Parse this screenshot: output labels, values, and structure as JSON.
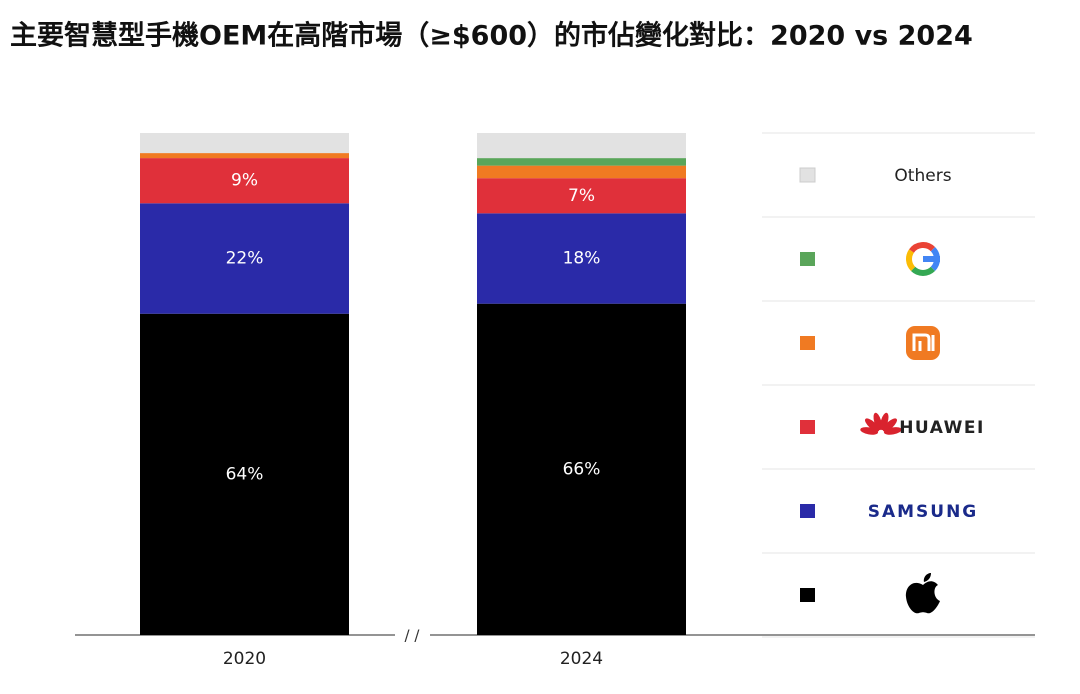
{
  "chart_data": {
    "type": "stacked_bar",
    "title": "主要智慧型手機OEM在高階市場（≥$600）的市佔變化對比：2020 vs 2024",
    "categories": [
      "2020",
      "2024"
    ],
    "axis_break": "/ /",
    "ylim": [
      0,
      100
    ],
    "series": [
      {
        "logo": "apple",
        "color": "#000000",
        "values": [
          64,
          66
        ],
        "value_labels": [
          "64%",
          "66%"
        ]
      },
      {
        "name": "SAMSUNG",
        "logo": "samsung",
        "color": "#2a2aa8",
        "values": [
          22,
          18
        ],
        "value_labels": [
          "22%",
          "18%"
        ]
      },
      {
        "name": "HUAWEI",
        "logo": "huawei",
        "color": "#e0303a",
        "values": [
          9,
          7
        ],
        "value_labels": [
          "9%",
          "7%"
        ]
      },
      {
        "logo": "xiaomi",
        "color": "#f07a22",
        "values": [
          1,
          2.5
        ]
      },
      {
        "logo": "google",
        "color": "#5aa55a",
        "values": [
          0,
          1.5
        ]
      },
      {
        "name": "Others",
        "color": "#e2e2e2",
        "values": [
          4,
          5
        ]
      }
    ]
  }
}
